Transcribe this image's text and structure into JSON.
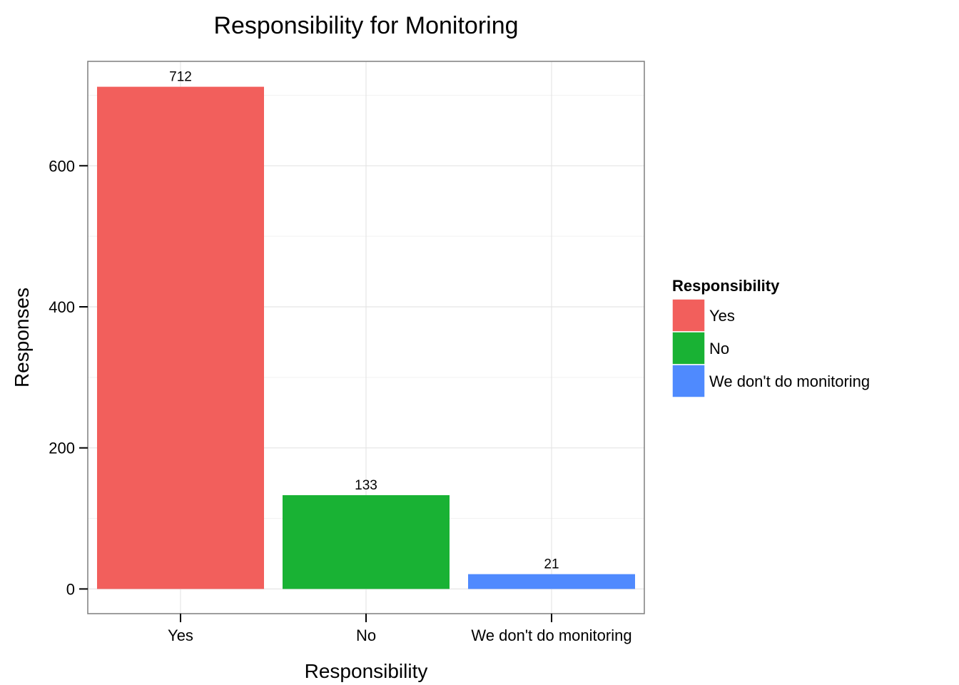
{
  "chart_data": {
    "type": "bar",
    "title": "Responsibility for Monitoring",
    "xlabel": "Responsibility",
    "ylabel": "Responses",
    "categories": [
      "Yes",
      "No",
      "We don't do monitoring"
    ],
    "values": [
      712,
      133,
      21
    ],
    "data_labels": [
      "712",
      "133",
      "21"
    ],
    "colors": [
      "#F25F5C",
      "#19B234",
      "#4F8AFE"
    ],
    "ylim": [
      -35,
      748
    ],
    "yticks": [
      0,
      200,
      400,
      600
    ],
    "ytick_labels": [
      "0",
      "200",
      "400",
      "600"
    ],
    "grid": true,
    "legend": {
      "title": "Responsibility",
      "position": "right",
      "entries": [
        "Yes",
        "No",
        "We don't do monitoring"
      ]
    }
  }
}
